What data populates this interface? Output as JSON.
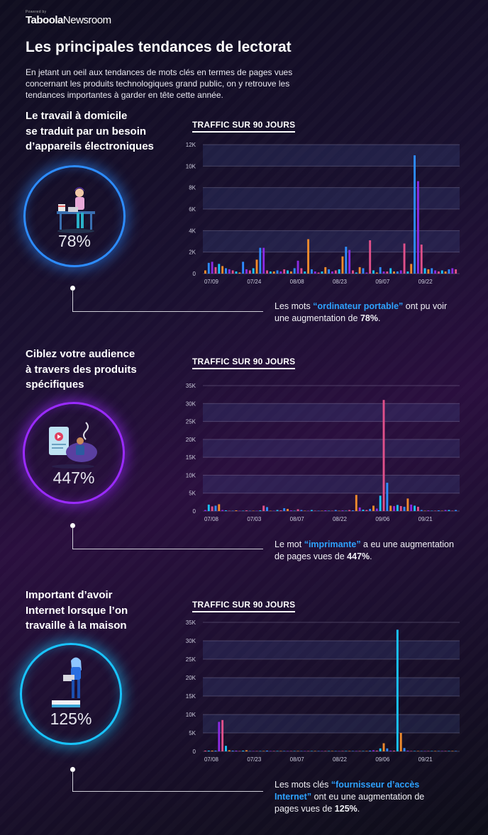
{
  "brand": {
    "small": "Powered by",
    "logo": "Taboola",
    "newsroom": "Newsroom"
  },
  "title": "Les principales tendances de lectorat",
  "intro": "En jetant un oeil aux tendances de mots clés en termes de pages vues concernant les produits technologiques grand public, on y retrouve les tendances importantes à garder en tête cette année.",
  "colors": {
    "blue": "#2d8cff",
    "purple": "#8a2be2",
    "cyan": "#19c4ff",
    "orange": "#f08a2c",
    "pink": "#e0508a",
    "keyword": "#2ea2ff"
  },
  "sections": [
    {
      "title": "Le travail à domicile\nse traduit par un besoin\nd’appareils électroniques",
      "percent": "78%",
      "icon": "woman-at-desk-icon",
      "caption": {
        "pre": "Les mots ",
        "keyword": "“ordinateur portable”",
        "mid": " ont pu voir une augmentation de ",
        "value": "78%",
        "post": "."
      }
    },
    {
      "title": "Ciblez votre audience\nà travers des produits\nspécifiques",
      "percent": "447%",
      "icon": "printer-video-icon",
      "caption": {
        "pre": "Le mot ",
        "keyword": "“imprimante”",
        "mid": " a eu une augmentation de pages vues de ",
        "value": "447%",
        "post": "."
      }
    },
    {
      "title": "Important d’avoir\nInternet lorsque l’on\ntravaille à la maison",
      "percent": "125%",
      "icon": "woman-with-laptop-icon",
      "caption": {
        "pre": "Les mots clés ",
        "keyword": "“fournisseur d’accès Internet”",
        "mid": " ont eu une augmentation de pages vues de ",
        "value": "125%",
        "post": "."
      }
    }
  ],
  "chart_data": [
    {
      "type": "bar",
      "title": "TRAFFIC SUR 90 JOURS",
      "ylim": [
        0,
        12000
      ],
      "yticks": [
        0,
        2000,
        4000,
        6000,
        8000,
        10000,
        12000
      ],
      "ytick_labels": [
        "0",
        "2K",
        "4K",
        "6K",
        "8K",
        "10K",
        "12K"
      ],
      "xtick_labels": [
        "07/09",
        "07/24",
        "08/08",
        "08/23",
        "09/07",
        "09/22"
      ],
      "grid": true,
      "values": [
        300,
        1000,
        1100,
        600,
        900,
        700,
        500,
        400,
        300,
        200,
        100,
        1100,
        400,
        300,
        500,
        1300,
        2400,
        2400,
        300,
        200,
        200,
        300,
        200,
        400,
        300,
        200,
        500,
        1200,
        500,
        200,
        3200,
        400,
        200,
        100,
        200,
        600,
        400,
        200,
        300,
        400,
        1600,
        2500,
        2200,
        300,
        100,
        600,
        500,
        100,
        3100,
        300,
        100,
        600,
        200,
        200,
        500,
        200,
        200,
        300,
        2800,
        200,
        900,
        11000,
        8600,
        2700,
        500,
        400,
        500,
        300,
        200,
        300,
        200,
        400,
        500,
        400
      ],
      "colors": [
        "#f08a2c",
        "#2d8cff",
        "#8a2be2",
        "#e0508a",
        "#19c4ff"
      ]
    },
    {
      "type": "bar",
      "title": "TRAFFIC SUR 90 JOURS",
      "ylim": [
        0,
        35000
      ],
      "yticks": [
        0,
        5000,
        10000,
        15000,
        20000,
        25000,
        30000,
        35000
      ],
      "ytick_labels": [
        "0",
        "5K",
        "10K",
        "15K",
        "20K",
        "25K",
        "30K",
        "35K"
      ],
      "xtick_labels": [
        "07/08",
        "07/03",
        "08/07",
        "08/22",
        "09/06",
        "09/21"
      ],
      "grid": true,
      "values": [
        300,
        1800,
        1300,
        1500,
        1900,
        300,
        200,
        100,
        100,
        200,
        100,
        100,
        200,
        100,
        100,
        100,
        200,
        1500,
        1100,
        100,
        100,
        300,
        200,
        800,
        600,
        200,
        100,
        500,
        300,
        100,
        100,
        300,
        100,
        100,
        100,
        200,
        100,
        100,
        300,
        100,
        200,
        100,
        300,
        200,
        4500,
        1000,
        400,
        300,
        600,
        1500,
        700,
        4300,
        31000,
        7900,
        1500,
        1400,
        1700,
        1400,
        1200,
        3500,
        1800,
        1500,
        1200,
        300,
        100,
        200,
        100,
        100,
        200,
        100,
        300,
        300,
        100,
        300
      ],
      "colors": [
        "#8a2be2",
        "#19c4ff",
        "#e0508a",
        "#2d8cff",
        "#f08a2c"
      ]
    },
    {
      "type": "bar",
      "title": "TRAFFIC SUR 90 JOURS",
      "ylim": [
        0,
        35000
      ],
      "yticks": [
        0,
        5000,
        10000,
        15000,
        20000,
        25000,
        30000,
        35000
      ],
      "ytick_labels": [
        "0",
        "5K",
        "10K",
        "15K",
        "20K",
        "25K",
        "30K",
        "35K"
      ],
      "xtick_labels": [
        "07/08",
        "07/23",
        "08/07",
        "08/22",
        "09/06",
        "09/21"
      ],
      "grid": true,
      "values": [
        200,
        200,
        200,
        200,
        8000,
        8500,
        1500,
        300,
        200,
        200,
        100,
        200,
        300,
        100,
        100,
        100,
        100,
        100,
        200,
        100,
        100,
        100,
        100,
        100,
        100,
        100,
        100,
        100,
        100,
        100,
        100,
        100,
        100,
        100,
        100,
        100,
        100,
        100,
        100,
        100,
        100,
        100,
        100,
        100,
        100,
        100,
        100,
        100,
        200,
        300,
        200,
        800,
        2200,
        800,
        200,
        200,
        33000,
        5000,
        900,
        200,
        100,
        100,
        100,
        100,
        100,
        100,
        100,
        100,
        100,
        100,
        100,
        100,
        100,
        100
      ],
      "colors": [
        "#e0508a",
        "#19c4ff",
        "#f08a2c",
        "#2d8cff",
        "#8a2be2"
      ]
    }
  ]
}
